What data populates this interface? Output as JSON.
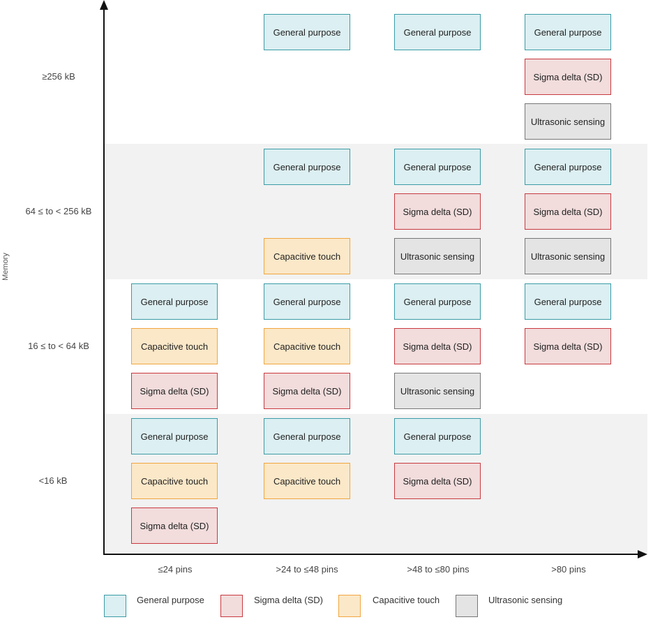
{
  "axes": {
    "y_title": "Memory",
    "y_categories": [
      "≥256 kB",
      "64 ≤ to < 256 kB",
      "16 ≤ to < 64 kB",
      "<16 kB"
    ],
    "x_categories": [
      "≤24 pins",
      ">24 to ≤48 pins",
      ">48 to ≤80 pins",
      ">80 pins"
    ]
  },
  "cells": {
    "r0c1": [
      "General purpose"
    ],
    "r0c2": [
      "General purpose"
    ],
    "r0c3": [
      "General purpose",
      "Sigma delta (SD)",
      "Ultrasonic sensing"
    ],
    "r1c1": [
      "General purpose",
      "Capacitive touch"
    ],
    "r1c2": [
      "General purpose",
      "Sigma delta (SD)",
      "Ultrasonic sensing"
    ],
    "r1c3": [
      "General purpose",
      "Sigma delta (SD)",
      "Ultrasonic sensing"
    ],
    "r2c0": [
      "General purpose",
      "Capacitive touch",
      "Sigma delta (SD)"
    ],
    "r2c1": [
      "General purpose",
      "Capacitive touch",
      "Sigma delta (SD)"
    ],
    "r2c2": [
      "General purpose",
      "Sigma delta (SD)",
      "Ultrasonic sensing"
    ],
    "r2c3": [
      "General purpose",
      "Sigma delta (SD)"
    ],
    "r3c0": [
      "General purpose",
      "Capacitive touch",
      "Sigma delta (SD)"
    ],
    "r3c1": [
      "General purpose",
      "Capacitive touch"
    ],
    "r3c2": [
      "General purpose",
      "Sigma delta (SD)"
    ]
  },
  "legend": [
    {
      "label": "General purpose",
      "color": "#dceff2",
      "border": "#3a9ba6"
    },
    {
      "label": "Sigma delta (SD)",
      "color": "#f2dcdc",
      "border": "#c8393f"
    },
    {
      "label": "Capacitive touch",
      "color": "#fbe8c8",
      "border": "#f0a63e"
    },
    {
      "label": "Ultrasonic sensing",
      "color": "#e4e4e4",
      "border": "#777777"
    }
  ]
}
